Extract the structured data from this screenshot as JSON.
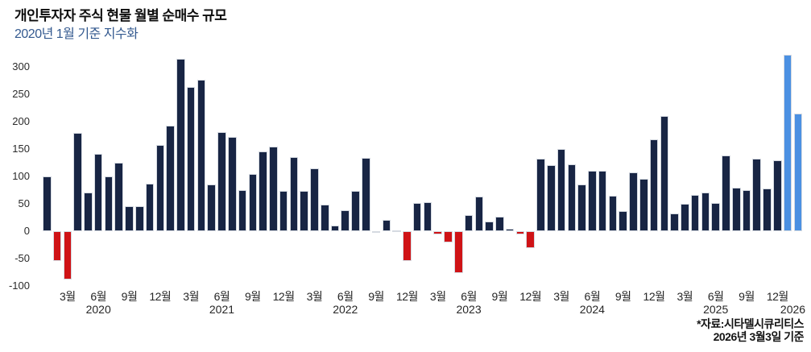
{
  "header": {
    "title": "개인투자자 주식 현물 월별 순매수 규모",
    "subtitle": "2020년 1월 기준 지수화"
  },
  "source": {
    "line1": "*자료:시타델시큐리티스",
    "line2": "2026년 3월3일 기준"
  },
  "chart_data": {
    "type": "bar",
    "title": "개인투자자 주식 현물 월별 순매수 규모",
    "subtitle": "2020년 1월 기준 지수화",
    "xlabel": "",
    "ylabel": "",
    "ylim": [
      -100,
      330
    ],
    "yticks": [
      300,
      250,
      200,
      150,
      100,
      50,
      0,
      -50,
      -100
    ],
    "grid": false,
    "legend": false,
    "colors": {
      "positive": "#182544",
      "negative": "#cf1316",
      "highlight": "#4b90e2",
      "subtitle_accent": "#33598f"
    },
    "categories": [
      "2020-01",
      "2020-02",
      "2020-03",
      "2020-04",
      "2020-05",
      "2020-06",
      "2020-07",
      "2020-08",
      "2020-09",
      "2020-10",
      "2020-11",
      "2020-12",
      "2021-01",
      "2021-02",
      "2021-03",
      "2021-04",
      "2021-05",
      "2021-06",
      "2021-07",
      "2021-08",
      "2021-09",
      "2021-10",
      "2021-11",
      "2021-12",
      "2022-01",
      "2022-02",
      "2022-03",
      "2022-04",
      "2022-05",
      "2022-06",
      "2022-07",
      "2022-08",
      "2022-09",
      "2022-10",
      "2022-11",
      "2022-12",
      "2023-01",
      "2023-02",
      "2023-03",
      "2023-04",
      "2023-05",
      "2023-06",
      "2023-07",
      "2023-08",
      "2023-09",
      "2023-10",
      "2023-11",
      "2023-12",
      "2024-01",
      "2024-02",
      "2024-03",
      "2024-04",
      "2024-05",
      "2024-06",
      "2024-07",
      "2024-08",
      "2024-09",
      "2024-10",
      "2024-11",
      "2024-12",
      "2025-01",
      "2025-02",
      "2025-03",
      "2025-04",
      "2025-05",
      "2025-06",
      "2025-07",
      "2025-08",
      "2025-09",
      "2025-10",
      "2025-11",
      "2025-12",
      "2026-01",
      "2026-02"
    ],
    "values": [
      100,
      -55,
      -88,
      180,
      70,
      141,
      100,
      125,
      45,
      45,
      87,
      157,
      192,
      315,
      263,
      277,
      86,
      181,
      172,
      75,
      104,
      146,
      155,
      74,
      136,
      74,
      115,
      48,
      10,
      38,
      73,
      134,
      -3,
      21,
      2,
      -54,
      52,
      53,
      -6,
      -20,
      -77,
      30,
      63,
      18,
      27,
      5,
      -6,
      -31,
      132,
      120,
      150,
      122,
      85,
      110,
      111,
      65,
      37,
      107,
      95,
      168,
      210,
      33,
      50,
      66,
      70,
      52,
      138,
      79,
      75,
      132,
      78,
      130,
      322,
      215
    ],
    "highlight_indices": [
      72,
      73
    ],
    "x_ticks": [
      {
        "index": 2,
        "label": "3월"
      },
      {
        "index": 5,
        "label": "6월"
      },
      {
        "index": 8,
        "label": "9월"
      },
      {
        "index": 11,
        "label": "12월"
      },
      {
        "index": 14,
        "label": "3월"
      },
      {
        "index": 17,
        "label": "6월"
      },
      {
        "index": 20,
        "label": "9월"
      },
      {
        "index": 23,
        "label": "12월"
      },
      {
        "index": 26,
        "label": "3월"
      },
      {
        "index": 29,
        "label": "6월"
      },
      {
        "index": 32,
        "label": "9월"
      },
      {
        "index": 35,
        "label": "12월"
      },
      {
        "index": 38,
        "label": "3월"
      },
      {
        "index": 41,
        "label": "6월"
      },
      {
        "index": 44,
        "label": "9월"
      },
      {
        "index": 47,
        "label": "12월"
      },
      {
        "index": 50,
        "label": "3월"
      },
      {
        "index": 53,
        "label": "6월"
      },
      {
        "index": 56,
        "label": "9월"
      },
      {
        "index": 59,
        "label": "12월"
      },
      {
        "index": 62,
        "label": "3월"
      },
      {
        "index": 65,
        "label": "6월"
      },
      {
        "index": 68,
        "label": "9월"
      },
      {
        "index": 71,
        "label": "12월"
      }
    ],
    "year_labels": [
      {
        "index": 5,
        "label": "2020"
      },
      {
        "index": 17,
        "label": "2021"
      },
      {
        "index": 29,
        "label": "2022"
      },
      {
        "index": 41,
        "label": "2023"
      },
      {
        "index": 53,
        "label": "2024"
      },
      {
        "index": 65,
        "label": "2025"
      },
      {
        "index": 72.5,
        "label": "2026"
      }
    ]
  }
}
